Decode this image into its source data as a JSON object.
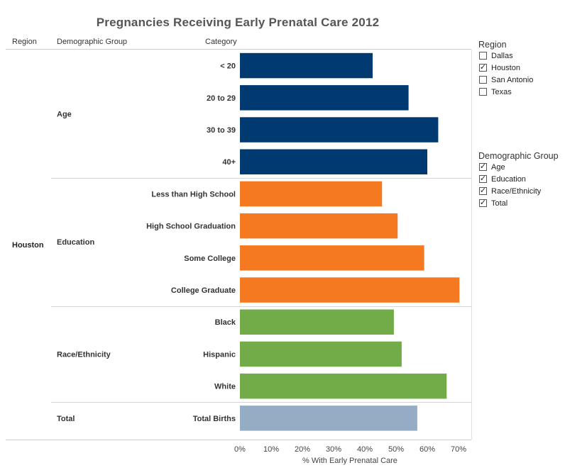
{
  "header": {
    "title": "Pregnancies Receiving Early Prenatal Care 2012",
    "col_region": "Region",
    "col_group": "Demographic Group",
    "col_category": "Category"
  },
  "region_label": "Houston",
  "filters": {
    "region": {
      "title": "Region",
      "items": [
        {
          "label": "Dallas",
          "checked": false
        },
        {
          "label": "Houston",
          "checked": true
        },
        {
          "label": "San Antonio",
          "checked": false
        },
        {
          "label": "Texas",
          "checked": false
        }
      ]
    },
    "demographic_group": {
      "title": "Demographic Group",
      "items": [
        {
          "label": "Age",
          "checked": true
        },
        {
          "label": "Education",
          "checked": true
        },
        {
          "label": "Race/Ethnicity",
          "checked": true
        },
        {
          "label": "Total",
          "checked": true
        }
      ]
    }
  },
  "chart_data": {
    "type": "bar",
    "orientation": "horizontal",
    "title": "Pregnancies Receiving Early Prenatal Care 2012",
    "xlabel": "% With Early Prenatal Care",
    "xlim": [
      0,
      0.72
    ],
    "xticks": [
      0,
      0.1,
      0.2,
      0.3,
      0.4,
      0.5,
      0.6,
      0.7
    ],
    "xtick_labels": [
      "0%",
      "10%",
      "20%",
      "30%",
      "40%",
      "50%",
      "60%",
      "70%"
    ],
    "groups": [
      {
        "name": "Age",
        "color": "#013a70",
        "items": [
          {
            "category": "< 20",
            "value": 0.425
          },
          {
            "category": "20 to 29",
            "value": 0.54
          },
          {
            "category": "30 to 39",
            "value": 0.635
          },
          {
            "category": "40+",
            "value": 0.6
          }
        ]
      },
      {
        "name": "Education",
        "color": "#f47920",
        "items": [
          {
            "category": "Less than High School",
            "value": 0.455
          },
          {
            "category": "High School Graduation",
            "value": 0.505
          },
          {
            "category": "Some College",
            "value": 0.59
          },
          {
            "category": "College Graduate",
            "value": 0.703
          }
        ]
      },
      {
        "name": "Race/Ethnicity",
        "color": "#72ac49",
        "items": [
          {
            "category": "Black",
            "value": 0.493
          },
          {
            "category": "Hispanic",
            "value": 0.518
          },
          {
            "category": "White",
            "value": 0.662
          }
        ]
      },
      {
        "name": "Total",
        "color": "#94adc5",
        "items": [
          {
            "category": "Total Births",
            "value": 0.568
          }
        ]
      }
    ]
  }
}
